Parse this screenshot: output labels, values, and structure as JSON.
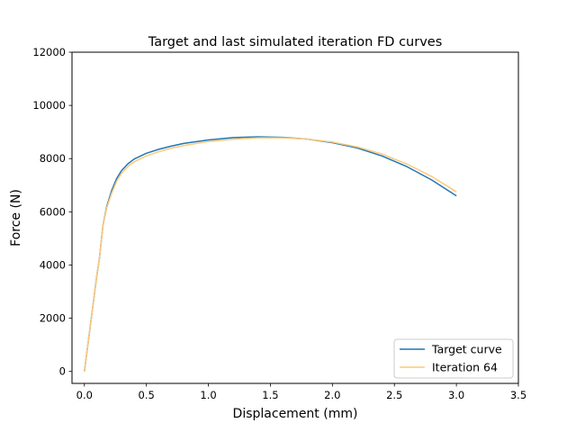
{
  "chart_data": {
    "type": "line",
    "title": "Target and last simulated iteration FD curves",
    "xlabel": "Displacement (mm)",
    "ylabel": "Force (N)",
    "xlim": [
      -0.1,
      3.5
    ],
    "ylim": [
      -450,
      12000
    ],
    "xticks": [
      0.0,
      0.5,
      1.0,
      1.5,
      2.0,
      2.5,
      3.0,
      3.5
    ],
    "xtick_labels": [
      "0.0",
      "0.5",
      "1.0",
      "1.5",
      "2.0",
      "2.5",
      "3.0",
      "3.5"
    ],
    "yticks": [
      0,
      2000,
      4000,
      6000,
      8000,
      10000,
      12000
    ],
    "ytick_labels": [
      "0",
      "2000",
      "4000",
      "6000",
      "8000",
      "10000",
      "12000"
    ],
    "grid": false,
    "legend_position": "lower-right",
    "series": [
      {
        "name": "Target curve",
        "color": "#1f77b4",
        "x": [
          0,
          0.05,
          0.1,
          0.12,
          0.15,
          0.18,
          0.22,
          0.26,
          0.3,
          0.35,
          0.4,
          0.5,
          0.6,
          0.7,
          0.8,
          1.0,
          1.2,
          1.4,
          1.6,
          1.8,
          2.0,
          2.2,
          2.4,
          2.6,
          2.8,
          3.0
        ],
        "y": [
          0,
          1800,
          3600,
          4200,
          5500,
          6200,
          6800,
          7250,
          7550,
          7800,
          7980,
          8200,
          8350,
          8470,
          8570,
          8700,
          8790,
          8820,
          8800,
          8730,
          8600,
          8400,
          8100,
          7700,
          7200,
          6600
        ]
      },
      {
        "name": "Iteration 64",
        "color": "#ffc87a",
        "x": [
          0,
          0.05,
          0.1,
          0.12,
          0.15,
          0.18,
          0.22,
          0.26,
          0.3,
          0.35,
          0.4,
          0.5,
          0.6,
          0.7,
          0.8,
          1.0,
          1.2,
          1.4,
          1.6,
          1.8,
          2.0,
          2.2,
          2.4,
          2.6,
          2.8,
          3.0
        ],
        "y": [
          0,
          1800,
          3600,
          4200,
          5500,
          6150,
          6700,
          7150,
          7450,
          7700,
          7880,
          8100,
          8260,
          8390,
          8490,
          8640,
          8730,
          8780,
          8780,
          8730,
          8620,
          8440,
          8170,
          7800,
          7330,
          6750
        ]
      }
    ]
  }
}
